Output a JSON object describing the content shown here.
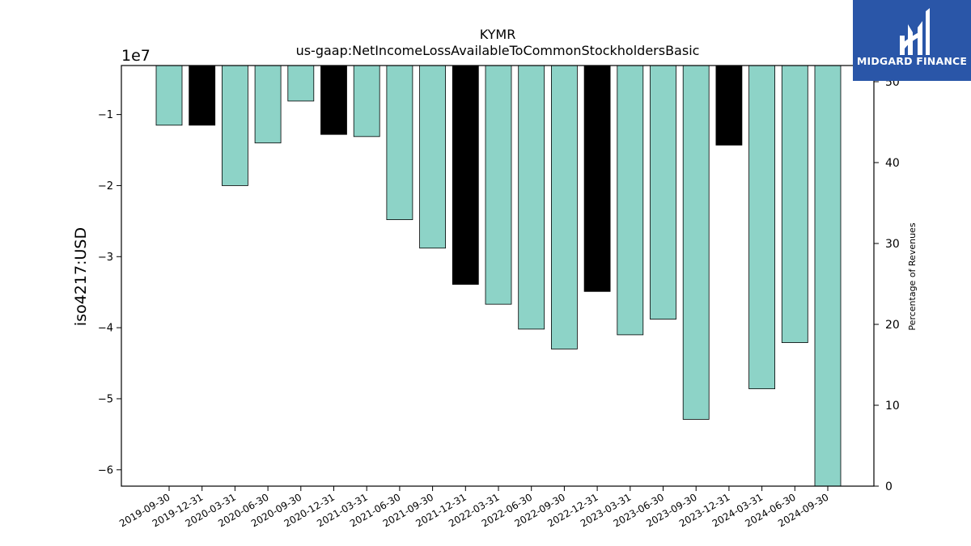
{
  "chart_data": {
    "type": "bar",
    "title": "KYMR",
    "subtitle": "us-gaap:NetIncomeLossAvailableToCommonStockholdersBasic",
    "ylabel": "iso4217:USD",
    "y_offset_label": "1e7",
    "y2label": "Percentage of Revenues",
    "categories": [
      "2019-09-30",
      "2019-12-31",
      "2020-03-31",
      "2020-06-30",
      "2020-09-30",
      "2020-12-31",
      "2021-03-31",
      "2021-06-30",
      "2021-09-30",
      "2021-12-31",
      "2022-03-31",
      "2022-06-30",
      "2022-09-30",
      "2022-12-31",
      "2023-03-31",
      "2023-06-30",
      "2023-09-30",
      "2023-12-31",
      "2024-03-31",
      "2024-06-30",
      "2024-09-30"
    ],
    "values": [
      -11500000,
      -11500000,
      -20000000,
      -14000000,
      -8100000,
      -12800000,
      -13100000,
      -24800000,
      -28800000,
      -33900000,
      -36700000,
      -40200000,
      -43000000,
      -34900000,
      -41000000,
      -38800000,
      -52900000,
      -14300000,
      -48600000,
      -42100000,
      -62300000
    ],
    "bar_colors": [
      "#8dd3c7",
      "#000000",
      "#8dd3c7",
      "#8dd3c7",
      "#8dd3c7",
      "#000000",
      "#8dd3c7",
      "#8dd3c7",
      "#8dd3c7",
      "#000000",
      "#8dd3c7",
      "#8dd3c7",
      "#8dd3c7",
      "#000000",
      "#8dd3c7",
      "#8dd3c7",
      "#8dd3c7",
      "#000000",
      "#8dd3c7",
      "#8dd3c7",
      "#8dd3c7"
    ],
    "ylim": [
      -62300000,
      -3100000
    ],
    "yticks": [
      -10000000,
      -20000000,
      -30000000,
      -40000000,
      -50000000,
      -60000000
    ],
    "ytick_labels": [
      "−1",
      "−2",
      "−3",
      "−4",
      "−5",
      "−6"
    ],
    "y2lim": [
      0,
      52
    ],
    "y2ticks": [
      0,
      10,
      20,
      30,
      40,
      50
    ],
    "y2tick_labels": [
      "0",
      "10",
      "20",
      "30",
      "40",
      "50"
    ],
    "grid": false,
    "legend": "none"
  },
  "logo": {
    "text": "MIDGARD FINANCE"
  }
}
